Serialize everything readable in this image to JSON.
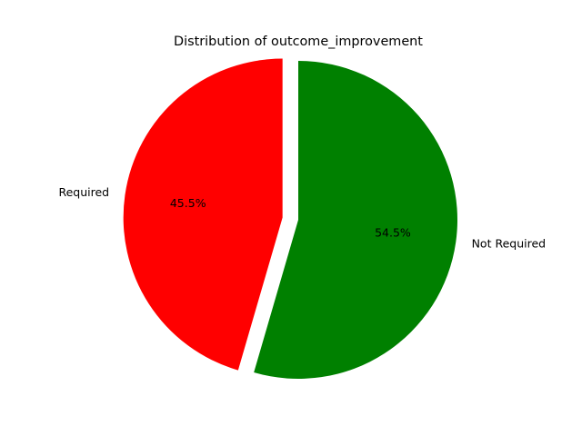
{
  "chart_data": {
    "type": "pie",
    "title": "Distribution of outcome_improvement",
    "categories": [
      "Required",
      "Not Required"
    ],
    "values": [
      45.5,
      54.5
    ],
    "percent_labels": [
      "45.5%",
      "54.5%"
    ],
    "colors": [
      "#ff0000",
      "#008000"
    ],
    "explode": [
      0.1,
      0
    ],
    "start_angle_deg": 90,
    "legend": "none"
  }
}
